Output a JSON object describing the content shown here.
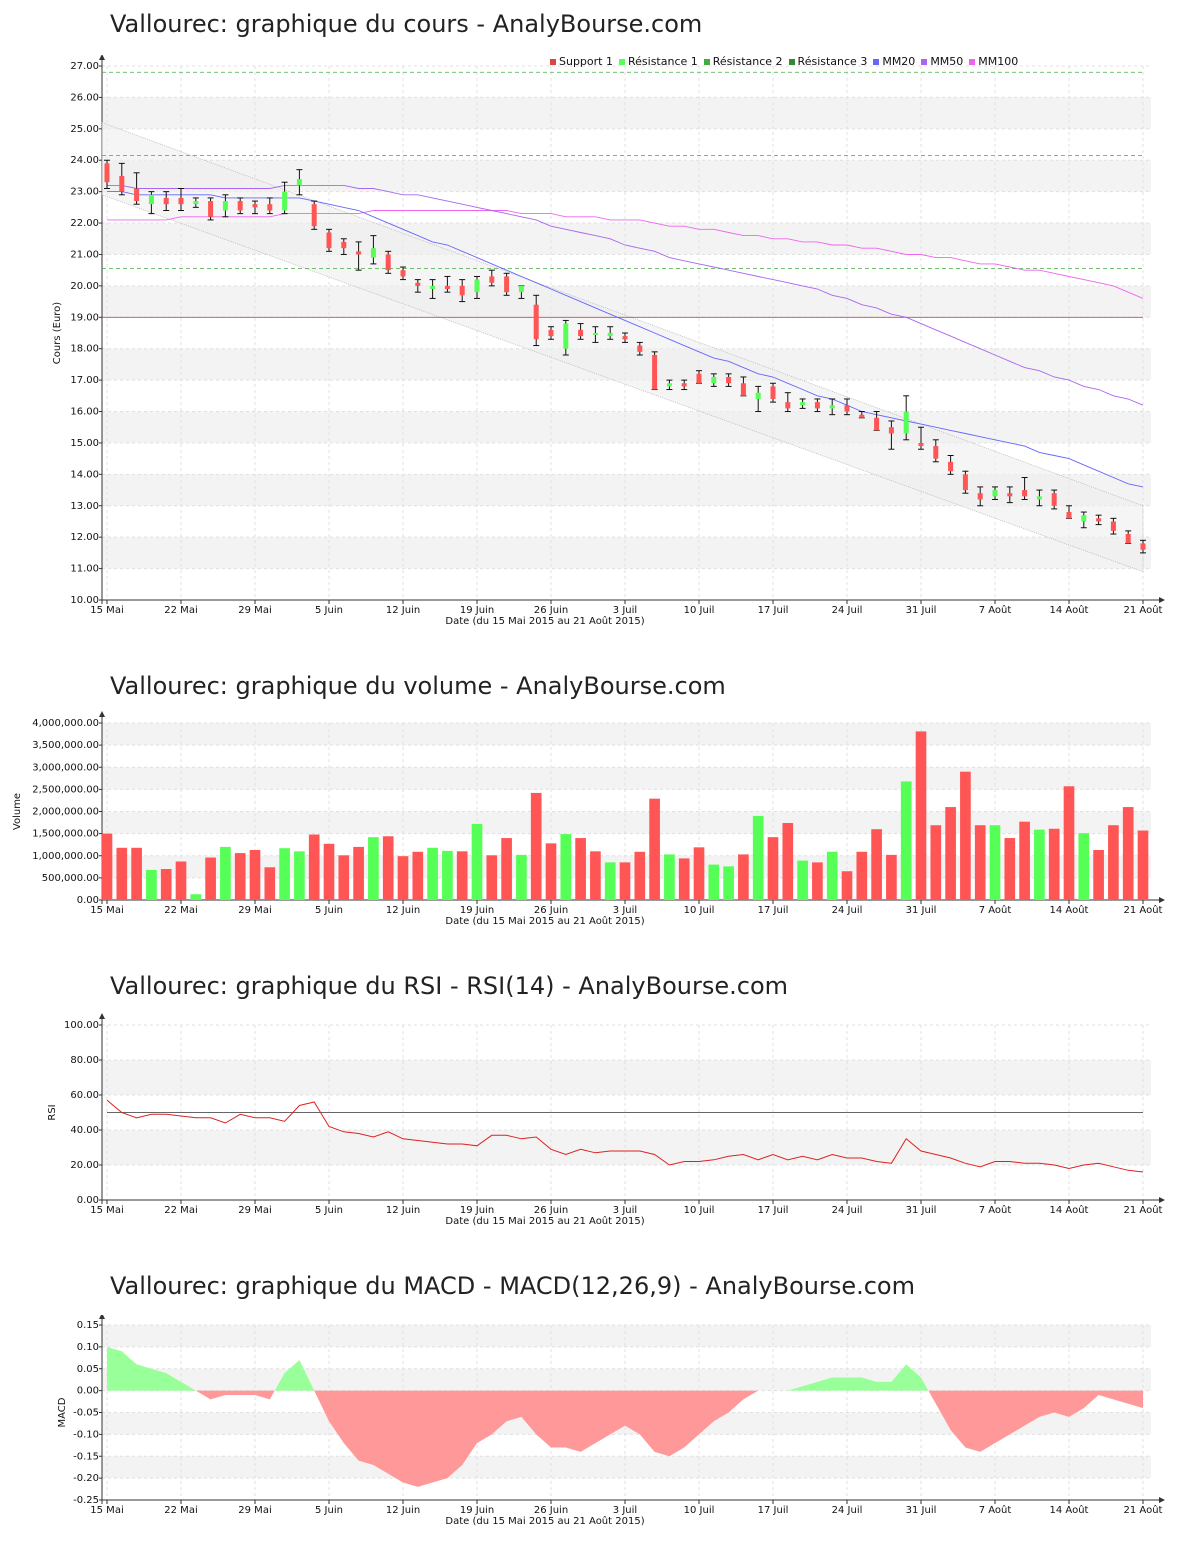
{
  "titles": {
    "price": "Vallourec: graphique du cours - AnalyBourse.com",
    "volume": "Vallourec: graphique du volume - AnalyBourse.com",
    "rsi": "Vallourec: graphique du RSI - RSI(14) - AnalyBourse.com",
    "macd": "Vallourec: graphique du MACD - MACD(12,26,9) - AnalyBourse.com"
  },
  "xlabel": "Date (du 15 Mai 2015 au 21 Août 2015)",
  "colors": {
    "up": "#55ff55",
    "down": "#ff5555",
    "ma20": "#6666ff",
    "ma50": "#aa66ee",
    "ma100": "#ee66ee",
    "support": "#dd4444",
    "resistance": "#44aa44",
    "macd_pos": "#99ff99",
    "macd_neg": "#ff9999"
  },
  "chart_data": [
    {
      "type": "candlestick",
      "title": "Vallourec: graphique du cours - AnalyBourse.com",
      "ylabel": "Cours (Euro)",
      "xlabel": "Date (du 15 Mai 2015 au 21 Août 2015)",
      "ylim": [
        10,
        27
      ],
      "yticks": [
        "10.00",
        "11.00",
        "12.00",
        "13.00",
        "14.00",
        "15.00",
        "16.00",
        "17.00",
        "18.00",
        "19.00",
        "20.00",
        "21.00",
        "22.00",
        "23.00",
        "24.00",
        "25.00",
        "26.00",
        "27.00"
      ],
      "xticks": [
        {
          "i": 0,
          "label": "15 Mai"
        },
        {
          "i": 5,
          "label": "22 Mai"
        },
        {
          "i": 10,
          "label": "29 Mai"
        },
        {
          "i": 15,
          "label": "5 Juin"
        },
        {
          "i": 20,
          "label": "12 Juin"
        },
        {
          "i": 25,
          "label": "19 Juin"
        },
        {
          "i": 30,
          "label": "26 Juin"
        },
        {
          "i": 35,
          "label": "3 Juil"
        },
        {
          "i": 40,
          "label": "10 Juil"
        },
        {
          "i": 45,
          "label": "17 Juil"
        },
        {
          "i": 50,
          "label": "24 Juil"
        },
        {
          "i": 55,
          "label": "31 Juil"
        },
        {
          "i": 60,
          "label": "7 Août"
        },
        {
          "i": 65,
          "label": "14 Août"
        },
        {
          "i": 70,
          "label": "21 Août"
        }
      ],
      "legend": [
        "Support 1",
        "Résistance 1",
        "Résistance 2",
        "Résistance 3",
        "MM20",
        "MM50",
        "MM100"
      ],
      "levels": {
        "support1": 19.0,
        "resistance1": 20.55,
        "resistance2": 24.15,
        "resistance3": 26.8
      },
      "candles": [
        [
          23.9,
          24.0,
          23.1,
          23.3
        ],
        [
          23.5,
          23.9,
          22.9,
          23.0
        ],
        [
          23.1,
          23.6,
          22.6,
          22.7
        ],
        [
          22.6,
          23.0,
          22.3,
          22.9
        ],
        [
          22.8,
          23.0,
          22.4,
          22.6
        ],
        [
          22.8,
          23.1,
          22.4,
          22.6
        ],
        [
          22.6,
          22.8,
          22.5,
          22.7
        ],
        [
          22.7,
          22.8,
          22.1,
          22.2
        ],
        [
          22.4,
          22.9,
          22.2,
          22.7
        ],
        [
          22.7,
          22.8,
          22.3,
          22.4
        ],
        [
          22.6,
          22.7,
          22.3,
          22.5
        ],
        [
          22.6,
          22.8,
          22.3,
          22.4
        ],
        [
          22.4,
          23.3,
          22.3,
          23.0
        ],
        [
          23.2,
          23.7,
          22.9,
          23.4
        ],
        [
          22.6,
          22.7,
          21.8,
          21.9
        ],
        [
          21.7,
          21.8,
          21.1,
          21.2
        ],
        [
          21.4,
          21.5,
          21.0,
          21.2
        ],
        [
          21.1,
          21.4,
          20.5,
          21.0
        ],
        [
          20.9,
          21.6,
          20.7,
          21.2
        ],
        [
          21.0,
          21.1,
          20.4,
          20.5
        ],
        [
          20.5,
          20.6,
          20.2,
          20.3
        ],
        [
          20.1,
          20.2,
          19.8,
          20.0
        ],
        [
          19.9,
          20.2,
          19.6,
          20.0
        ],
        [
          20.0,
          20.3,
          19.8,
          19.9
        ],
        [
          20.0,
          20.2,
          19.5,
          19.7
        ],
        [
          19.8,
          20.3,
          19.6,
          20.2
        ],
        [
          20.3,
          20.5,
          20.0,
          20.1
        ],
        [
          20.3,
          20.4,
          19.7,
          19.8
        ],
        [
          19.8,
          20.0,
          19.6,
          20.0
        ],
        [
          19.4,
          19.7,
          18.1,
          18.3
        ],
        [
          18.6,
          18.7,
          18.3,
          18.4
        ],
        [
          18.0,
          18.9,
          17.8,
          18.8
        ],
        [
          18.6,
          18.8,
          18.3,
          18.4
        ],
        [
          18.5,
          18.7,
          18.2,
          18.5
        ],
        [
          18.4,
          18.7,
          18.3,
          18.5
        ],
        [
          18.4,
          18.5,
          18.2,
          18.3
        ],
        [
          18.1,
          18.2,
          17.8,
          17.9
        ],
        [
          17.8,
          17.9,
          16.7,
          16.7
        ],
        [
          16.8,
          17.0,
          16.7,
          16.9
        ],
        [
          16.9,
          17.0,
          16.7,
          16.8
        ],
        [
          17.2,
          17.3,
          16.9,
          16.9
        ],
        [
          16.9,
          17.2,
          16.8,
          17.1
        ],
        [
          17.1,
          17.2,
          16.8,
          16.9
        ],
        [
          16.9,
          17.1,
          16.5,
          16.5
        ],
        [
          16.4,
          16.8,
          16.0,
          16.6
        ],
        [
          16.8,
          16.9,
          16.3,
          16.4
        ],
        [
          16.3,
          16.6,
          16.0,
          16.1
        ],
        [
          16.2,
          16.4,
          16.1,
          16.3
        ],
        [
          16.3,
          16.4,
          16.0,
          16.1
        ],
        [
          16.1,
          16.4,
          15.9,
          16.2
        ],
        [
          16.2,
          16.4,
          15.9,
          16.0
        ],
        [
          15.9,
          16.0,
          15.8,
          15.8
        ],
        [
          15.8,
          16.0,
          15.4,
          15.4
        ],
        [
          15.5,
          15.7,
          14.8,
          15.3
        ],
        [
          15.3,
          16.5,
          15.1,
          16.0
        ],
        [
          15.0,
          15.5,
          14.8,
          14.9
        ],
        [
          14.9,
          15.1,
          14.4,
          14.5
        ],
        [
          14.4,
          14.6,
          14.0,
          14.1
        ],
        [
          14.0,
          14.1,
          13.4,
          13.5
        ],
        [
          13.4,
          13.6,
          13.0,
          13.2
        ],
        [
          13.3,
          13.6,
          13.2,
          13.5
        ],
        [
          13.4,
          13.6,
          13.1,
          13.3
        ],
        [
          13.5,
          13.9,
          13.2,
          13.3
        ],
        [
          13.2,
          13.5,
          13.0,
          13.3
        ],
        [
          13.4,
          13.5,
          12.9,
          13.0
        ],
        [
          12.8,
          13.0,
          12.6,
          12.6
        ],
        [
          12.5,
          12.8,
          12.3,
          12.7
        ],
        [
          12.6,
          12.7,
          12.4,
          12.5
        ],
        [
          12.5,
          12.6,
          12.1,
          12.2
        ],
        [
          12.1,
          12.2,
          11.8,
          11.8
        ],
        [
          11.8,
          11.9,
          11.5,
          11.6
        ]
      ],
      "ma20": [
        23.0,
        23.0,
        22.9,
        22.9,
        22.9,
        22.9,
        22.9,
        22.9,
        22.8,
        22.8,
        22.8,
        22.8,
        22.8,
        22.8,
        22.7,
        22.6,
        22.5,
        22.4,
        22.2,
        22.0,
        21.8,
        21.6,
        21.4,
        21.3,
        21.1,
        20.9,
        20.7,
        20.5,
        20.3,
        20.1,
        19.9,
        19.7,
        19.5,
        19.3,
        19.1,
        18.9,
        18.7,
        18.5,
        18.3,
        18.1,
        17.9,
        17.7,
        17.6,
        17.4,
        17.2,
        17.1,
        16.9,
        16.7,
        16.5,
        16.4,
        16.2,
        16.0,
        15.9,
        15.8,
        15.7,
        15.6,
        15.5,
        15.4,
        15.3,
        15.2,
        15.1,
        15.0,
        14.9,
        14.7,
        14.6,
        14.5,
        14.3,
        14.1,
        13.9,
        13.7,
        13.6
      ],
      "ma50": [
        23.2,
        23.2,
        23.1,
        23.1,
        23.1,
        23.1,
        23.1,
        23.1,
        23.1,
        23.1,
        23.1,
        23.1,
        23.2,
        23.2,
        23.2,
        23.2,
        23.2,
        23.1,
        23.1,
        23.0,
        22.9,
        22.9,
        22.8,
        22.7,
        22.6,
        22.5,
        22.4,
        22.3,
        22.2,
        22.1,
        21.9,
        21.8,
        21.7,
        21.6,
        21.5,
        21.3,
        21.2,
        21.1,
        20.9,
        20.8,
        20.7,
        20.6,
        20.5,
        20.4,
        20.3,
        20.2,
        20.1,
        20.0,
        19.9,
        19.7,
        19.6,
        19.4,
        19.3,
        19.1,
        19.0,
        18.8,
        18.6,
        18.4,
        18.2,
        18.0,
        17.8,
        17.6,
        17.4,
        17.3,
        17.1,
        17.0,
        16.8,
        16.7,
        16.5,
        16.4,
        16.2
      ],
      "ma100": [
        22.1,
        22.1,
        22.1,
        22.1,
        22.1,
        22.2,
        22.2,
        22.2,
        22.2,
        22.2,
        22.2,
        22.2,
        22.3,
        22.3,
        22.3,
        22.3,
        22.3,
        22.3,
        22.4,
        22.4,
        22.4,
        22.4,
        22.4,
        22.4,
        22.4,
        22.4,
        22.4,
        22.4,
        22.3,
        22.3,
        22.3,
        22.2,
        22.2,
        22.2,
        22.1,
        22.1,
        22.1,
        22.0,
        21.9,
        21.9,
        21.8,
        21.8,
        21.7,
        21.6,
        21.6,
        21.5,
        21.5,
        21.4,
        21.4,
        21.3,
        21.3,
        21.2,
        21.2,
        21.1,
        21.0,
        21.0,
        20.9,
        20.9,
        20.8,
        20.7,
        20.7,
        20.6,
        20.5,
        20.5,
        20.4,
        20.3,
        20.2,
        20.1,
        20.0,
        19.8,
        19.6
      ],
      "channel": {
        "upper": [
          25.2,
          13.0
        ],
        "lower": [
          22.9,
          10.9
        ]
      }
    },
    {
      "type": "bar",
      "title": "Vallourec: graphique du volume - AnalyBourse.com",
      "ylabel": "Volume",
      "ylim": [
        0,
        4000000
      ],
      "yticks": [
        "0.00",
        "500,000.00",
        "1,000,000.00",
        "1,500,000.00",
        "2,000,000.00",
        "2,500,000.00",
        "3,000,000.00",
        "3,500,000.00",
        "4,000,000.00"
      ],
      "values": [
        1500000,
        1180000,
        1180000,
        680000,
        700000,
        870000,
        130000,
        960000,
        1200000,
        1060000,
        1130000,
        740000,
        1170000,
        1100000,
        1480000,
        1270000,
        1010000,
        1200000,
        1420000,
        1440000,
        990000,
        1090000,
        1180000,
        1110000,
        1100000,
        1720000,
        1010000,
        1400000,
        1020000,
        2420000,
        1280000,
        1490000,
        1400000,
        1100000,
        850000,
        850000,
        1090000,
        2290000,
        1030000,
        940000,
        1190000,
        800000,
        760000,
        1030000,
        1900000,
        1420000,
        1740000,
        890000,
        850000,
        1090000,
        650000,
        1090000,
        1600000,
        1020000,
        2680000,
        3810000,
        1690000,
        2100000,
        2900000,
        1690000,
        1690000,
        1400000,
        1770000,
        1590000,
        1610000,
        2570000,
        1510000,
        1130000,
        1690000,
        2100000,
        1570000
      ],
      "up": [
        false,
        false,
        false,
        true,
        false,
        false,
        true,
        false,
        true,
        false,
        false,
        false,
        true,
        true,
        false,
        false,
        false,
        false,
        true,
        false,
        false,
        false,
        true,
        true,
        false,
        true,
        false,
        false,
        true,
        false,
        false,
        true,
        false,
        false,
        true,
        false,
        false,
        false,
        true,
        false,
        false,
        true,
        true,
        false,
        true,
        false,
        false,
        true,
        false,
        true,
        false,
        false,
        false,
        false,
        true,
        false,
        false,
        false,
        false,
        false,
        true,
        false,
        false,
        true,
        false,
        false,
        true,
        false,
        false,
        false,
        false
      ]
    },
    {
      "type": "line",
      "title": "Vallourec: graphique du RSI - RSI(14) - AnalyBourse.com",
      "ylabel": "RSI",
      "ylim": [
        0,
        100
      ],
      "yticks": [
        "0.00",
        "20.00",
        "40.00",
        "60.00",
        "80.00",
        "100.00"
      ],
      "reference": 50,
      "values": [
        57,
        50,
        47,
        49,
        49,
        48,
        47,
        47,
        44,
        49,
        47,
        47,
        45,
        54,
        56,
        42,
        39,
        38,
        36,
        39,
        35,
        34,
        33,
        32,
        32,
        31,
        37,
        37,
        35,
        36,
        29,
        26,
        29,
        27,
        28,
        28,
        28,
        26,
        20,
        22,
        22,
        23,
        25,
        26,
        23,
        26,
        23,
        25,
        23,
        26,
        24,
        24,
        22,
        21,
        35,
        28,
        26,
        24,
        21,
        19,
        22,
        22,
        21,
        21,
        20,
        18,
        20,
        21,
        19,
        17,
        16
      ]
    },
    {
      "type": "area",
      "title": "Vallourec: graphique du MACD - MACD(12,26,9) - AnalyBourse.com",
      "ylabel": "MACD",
      "ylim": [
        -0.25,
        0.15
      ],
      "yticks": [
        "-0.25",
        "-0.20",
        "-0.15",
        "-0.10",
        "-0.05",
        "0.00",
        "0.05",
        "0.10",
        "0.15"
      ],
      "values": [
        0.1,
        0.09,
        0.06,
        0.05,
        0.04,
        0.02,
        0.0,
        -0.02,
        -0.01,
        -0.01,
        -0.01,
        -0.02,
        0.04,
        0.07,
        0.0,
        -0.07,
        -0.12,
        -0.16,
        -0.17,
        -0.19,
        -0.21,
        -0.22,
        -0.21,
        -0.2,
        -0.17,
        -0.12,
        -0.1,
        -0.07,
        -0.06,
        -0.1,
        -0.13,
        -0.13,
        -0.14,
        -0.12,
        -0.1,
        -0.08,
        -0.1,
        -0.14,
        -0.15,
        -0.13,
        -0.1,
        -0.07,
        -0.05,
        -0.02,
        0.0,
        0.0,
        0.0,
        0.01,
        0.02,
        0.03,
        0.03,
        0.03,
        0.02,
        0.02,
        0.06,
        0.03,
        -0.03,
        -0.09,
        -0.13,
        -0.14,
        -0.12,
        -0.1,
        -0.08,
        -0.06,
        -0.05,
        -0.06,
        -0.04,
        -0.01,
        -0.02,
        -0.03,
        -0.04
      ]
    }
  ]
}
